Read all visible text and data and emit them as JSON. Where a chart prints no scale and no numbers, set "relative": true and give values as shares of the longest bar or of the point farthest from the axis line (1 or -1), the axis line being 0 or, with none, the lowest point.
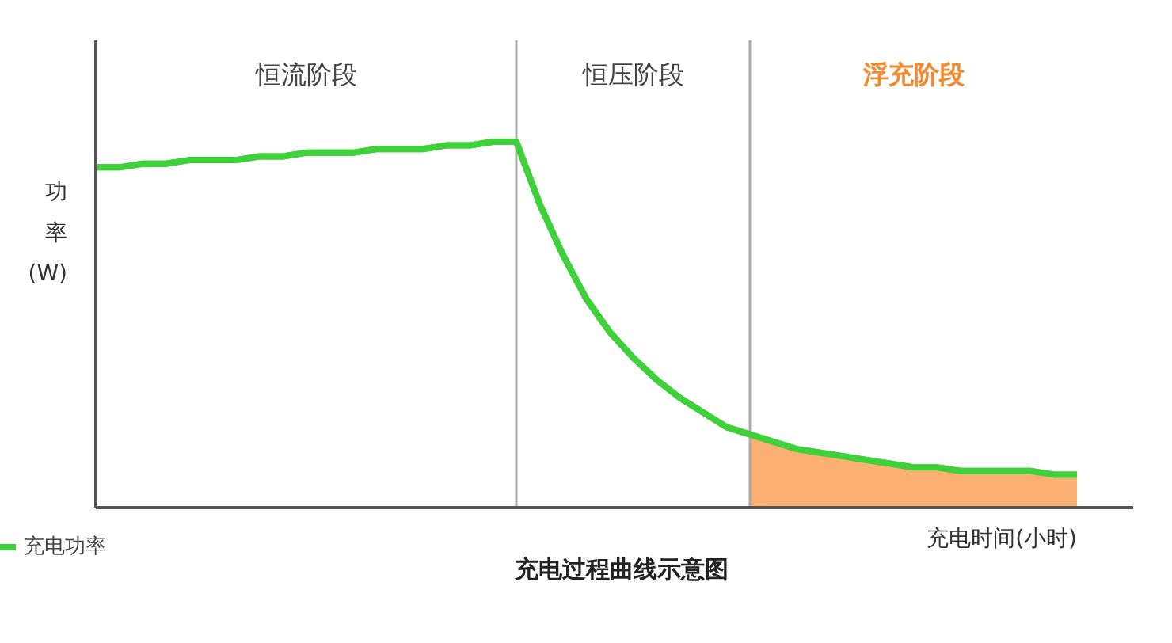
{
  "chart_data": {
    "type": "line",
    "title": "充电过程曲线示意图",
    "xlabel": "充电时间(小时)",
    "ylabel": "功率(W)",
    "relative": true,
    "legend": "bottom left",
    "marker": "none",
    "line_style": "solid",
    "categories": [
      null,
      null,
      null,
      null,
      null,
      null,
      null,
      null,
      null,
      null,
      null,
      null,
      null,
      null,
      null,
      null,
      null,
      null,
      null,
      null,
      null,
      null,
      null,
      null,
      null,
      null,
      null,
      null,
      null,
      null,
      null,
      null,
      null,
      null,
      null,
      null,
      null,
      null,
      null,
      null,
      null,
      null,
      null
    ],
    "series": [
      {
        "name": "充电功率",
        "color": "#3fd13a",
        "values": [
          0.93,
          0.93,
          0.94,
          0.94,
          0.95,
          0.95,
          0.95,
          0.96,
          0.96,
          0.97,
          0.97,
          0.97,
          0.98,
          0.98,
          0.98,
          0.99,
          0.99,
          1.0,
          1.0,
          0.83,
          0.69,
          0.57,
          0.48,
          0.41,
          0.35,
          0.3,
          0.26,
          0.22,
          0.2,
          0.18,
          0.16,
          0.15,
          0.14,
          0.13,
          0.12,
          0.11,
          0.11,
          0.1,
          0.1,
          0.1,
          0.1,
          0.09,
          0.09
        ]
      },
      {
        "type": "area",
        "color": "#fbb072",
        "values": [
          null,
          null,
          null,
          null,
          null,
          null,
          null,
          null,
          null,
          null,
          null,
          null,
          null,
          null,
          null,
          null,
          null,
          null,
          null,
          null,
          null,
          null,
          null,
          null,
          null,
          null,
          null,
          null,
          0.2,
          0.18,
          0.16,
          0.15,
          0.14,
          0.13,
          0.12,
          0.11,
          0.11,
          0.1,
          0.1,
          0.1,
          0.1,
          0.09,
          0.09
        ]
      }
    ],
    "annotations": [
      "恒流阶段",
      "恒压阶段",
      "浮充阶段"
    ]
  }
}
